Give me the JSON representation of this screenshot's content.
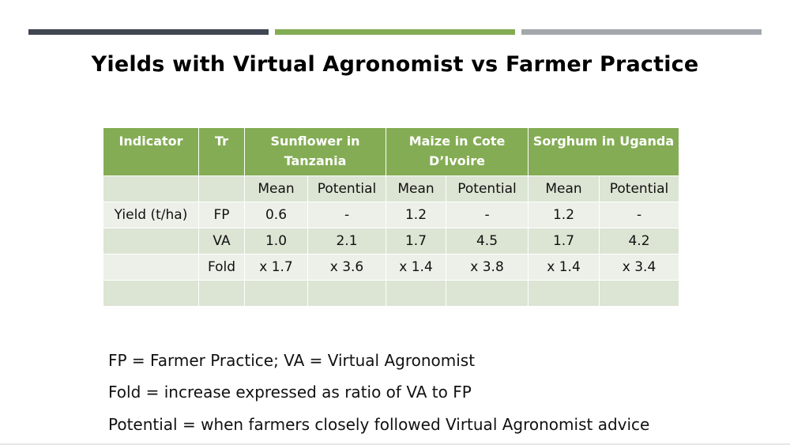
{
  "title": "Yields with Virtual Agronomist vs Farmer Practice",
  "colors": {
    "accent_dark": "#404652",
    "accent_green": "#84ac54",
    "accent_gray": "#a4a8ad"
  },
  "table": {
    "header": {
      "indicator": "Indicator",
      "tr": "Tr",
      "crop1": "Sunflower in Tanzania",
      "crop2": "Maize in Cote D’Ivoire",
      "crop3": "Sorghum in Uganda"
    },
    "subheader": [
      "",
      "",
      "Mean",
      "Potential",
      "Mean",
      "Potential",
      "Mean",
      "Potential"
    ],
    "rows": [
      [
        "Yield (t/ha)",
        "FP",
        "0.6",
        "-",
        "1.2",
        "-",
        "1.2",
        "-"
      ],
      [
        "",
        "VA",
        "1.0",
        "2.1",
        "1.7",
        "4.5",
        "1.7",
        "4.2"
      ],
      [
        "",
        "Fold",
        "x 1.7",
        "x 3.6",
        "x 1.4",
        "x 3.8",
        "x 1.4",
        "x 3.4"
      ],
      [
        "",
        "",
        "",
        "",
        "",
        "",
        "",
        ""
      ]
    ]
  },
  "notes": [
    "FP = Farmer Practice; VA = Virtual Agronomist",
    "Fold = increase expressed as ratio of VA to FP",
    "Potential = when farmers closely followed Virtual Agronomist advice"
  ]
}
